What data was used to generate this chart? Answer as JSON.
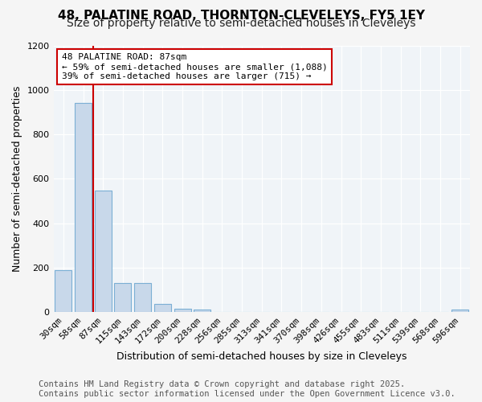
{
  "title": "48, PALATINE ROAD, THORNTON-CLEVELEYS, FY5 1EY",
  "subtitle": "Size of property relative to semi-detached houses in Cleveleys",
  "xlabel": "Distribution of semi-detached houses by size in Cleveleys",
  "ylabel": "Number of semi-detached properties",
  "categories": [
    "30sqm",
    "58sqm",
    "87sqm",
    "115sqm",
    "143sqm",
    "172sqm",
    "200sqm",
    "228sqm",
    "256sqm",
    "285sqm",
    "313sqm",
    "341sqm",
    "370sqm",
    "398sqm",
    "426sqm",
    "455sqm",
    "483sqm",
    "511sqm",
    "539sqm",
    "568sqm",
    "596sqm"
  ],
  "values": [
    190,
    940,
    545,
    130,
    130,
    35,
    15,
    10,
    0,
    0,
    0,
    0,
    0,
    0,
    0,
    0,
    0,
    0,
    0,
    0,
    10
  ],
  "bar_color": "#c8d8ea",
  "bar_edge_color": "#7bafd4",
  "vline_color": "#cc0000",
  "annotation_text": "48 PALATINE ROAD: 87sqm\n← 59% of semi-detached houses are smaller (1,088)\n39% of semi-detached houses are larger (715) →",
  "annotation_box_facecolor": "#ffffff",
  "annotation_box_edgecolor": "#cc0000",
  "ylim": [
    0,
    1200
  ],
  "yticks": [
    0,
    200,
    400,
    600,
    800,
    1000,
    1200
  ],
  "footer": "Contains HM Land Registry data © Crown copyright and database right 2025.\nContains public sector information licensed under the Open Government Licence v3.0.",
  "bg_color": "#f5f5f5",
  "plot_bg_color": "#f0f4f8",
  "title_fontsize": 11,
  "subtitle_fontsize": 10,
  "axis_label_fontsize": 9,
  "tick_fontsize": 8,
  "footer_fontsize": 7.5,
  "annotation_fontsize": 8
}
